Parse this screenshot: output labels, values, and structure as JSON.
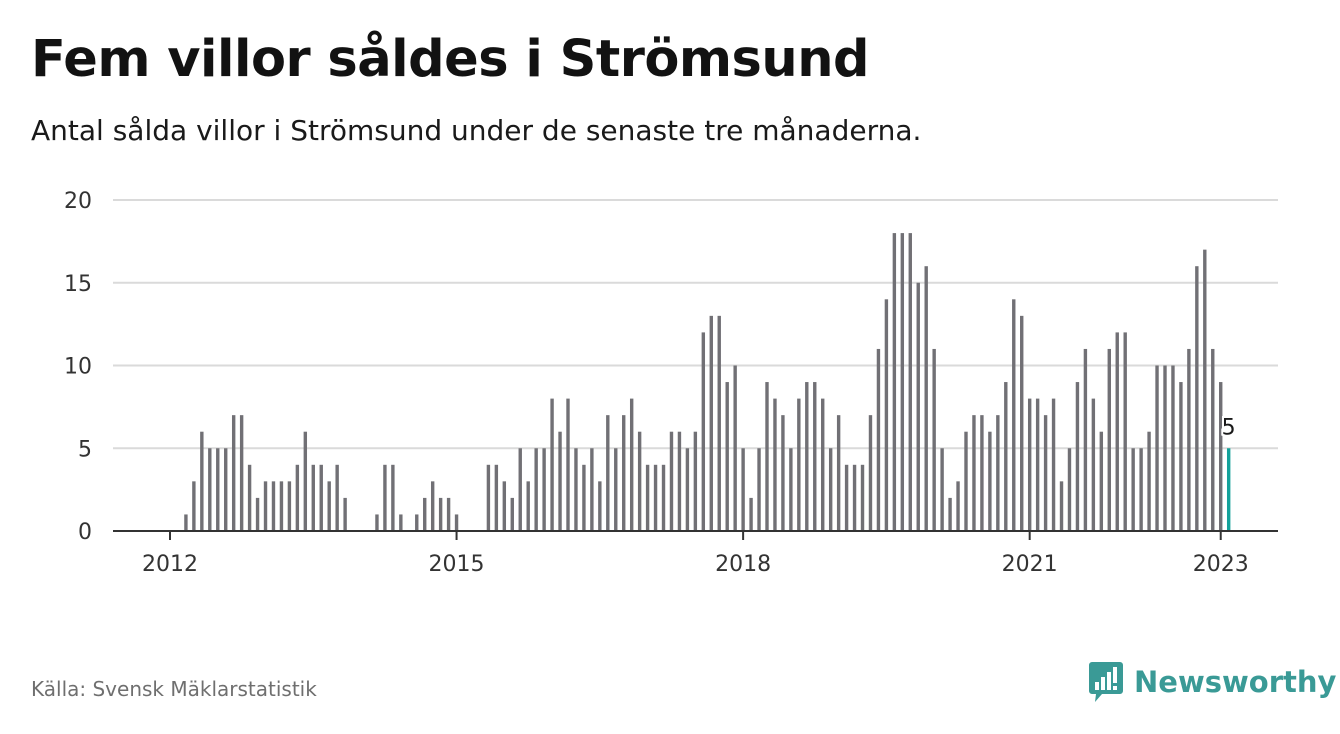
{
  "header": {
    "title": "Fem villor såldes i Strömsund",
    "subtitle": "Antal sålda villor i Strömsund under de senaste tre månaderna."
  },
  "footer": {
    "source": "Källa: Svensk Mäklarstatistik",
    "brand_name": "Newsworthy",
    "brand_icon": "newsworthy-logo-icon"
  },
  "colors": {
    "bar": "#717075",
    "highlight": "#14a19a",
    "grid": "#dadada",
    "axis": "#333333",
    "brand": "#3a9a96"
  },
  "chart_data": {
    "type": "bar",
    "title": "Fem villor såldes i Strömsund",
    "subtitle": "Antal sålda villor i Strömsund under de senaste tre månaderna.",
    "xlabel": "",
    "ylabel": "",
    "ylim": [
      0,
      20
    ],
    "yticks": [
      "0",
      "5",
      "10",
      "15",
      "20"
    ],
    "xticks": [
      "2012",
      "2015",
      "2018",
      "2021",
      "2023"
    ],
    "xtick_years": [
      2012,
      2015,
      2018,
      2021,
      2023
    ],
    "grid": true,
    "legend": "none",
    "x_start": "2012-01",
    "x_end": "2023-01",
    "highlight_label": "5",
    "values": [
      0,
      0,
      1,
      3,
      6,
      5,
      5,
      5,
      7,
      7,
      4,
      2,
      3,
      3,
      3,
      3,
      4,
      6,
      4,
      4,
      3,
      4,
      2,
      0,
      0,
      0,
      1,
      4,
      4,
      1,
      0,
      1,
      2,
      3,
      2,
      2,
      1,
      0,
      0,
      0,
      4,
      4,
      3,
      2,
      5,
      3,
      5,
      5,
      8,
      6,
      8,
      5,
      4,
      5,
      3,
      7,
      5,
      7,
      8,
      6,
      4,
      4,
      4,
      6,
      6,
      5,
      6,
      12,
      13,
      13,
      9,
      10,
      5,
      2,
      5,
      9,
      8,
      7,
      5,
      8,
      9,
      9,
      8,
      5,
      7,
      4,
      4,
      4,
      7,
      11,
      14,
      18,
      18,
      18,
      15,
      16,
      11,
      5,
      2,
      3,
      6,
      7,
      7,
      6,
      7,
      9,
      14,
      13,
      8,
      8,
      7,
      8,
      3,
      5,
      9,
      11,
      8,
      6,
      11,
      12,
      12,
      5,
      5,
      6,
      10,
      10,
      10,
      9,
      11,
      16,
      17,
      11,
      9,
      5
    ]
  }
}
